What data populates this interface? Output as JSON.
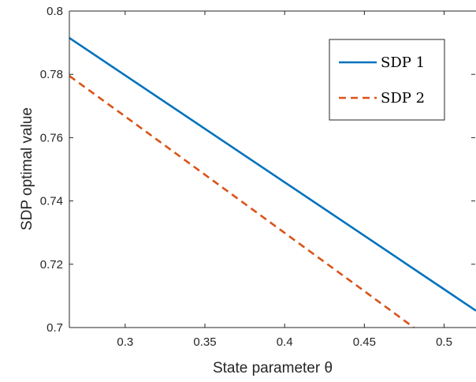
{
  "chart_data": {
    "type": "line",
    "xlabel": "State parameter θ",
    "ylabel": "SDP optimal value",
    "xlim": [
      0.265,
      0.52
    ],
    "ylim": [
      0.7,
      0.8
    ],
    "xticks": [
      "0.3",
      "0.35",
      "0.4",
      "0.45",
      "0.5"
    ],
    "yticks": [
      "0.7",
      "0.72",
      "0.74",
      "0.76",
      "0.78",
      "0.8"
    ],
    "grid": false,
    "legend_position": "top-right",
    "series": [
      {
        "name": "SDP 1",
        "color": "#0072BD",
        "style": "solid",
        "x": [
          0.265,
          0.3,
          0.35,
          0.4,
          0.45,
          0.5,
          0.52
        ],
        "y": [
          0.7915,
          0.7797,
          0.7628,
          0.7459,
          0.729,
          0.7121,
          0.7053
        ]
      },
      {
        "name": "SDP 2",
        "color": "#D95319",
        "style": "dashed",
        "x": [
          0.265,
          0.3,
          0.35,
          0.4,
          0.45,
          0.481
        ],
        "y": [
          0.7795,
          0.7667,
          0.7483,
          0.7299,
          0.7115,
          0.7
        ]
      }
    ]
  }
}
